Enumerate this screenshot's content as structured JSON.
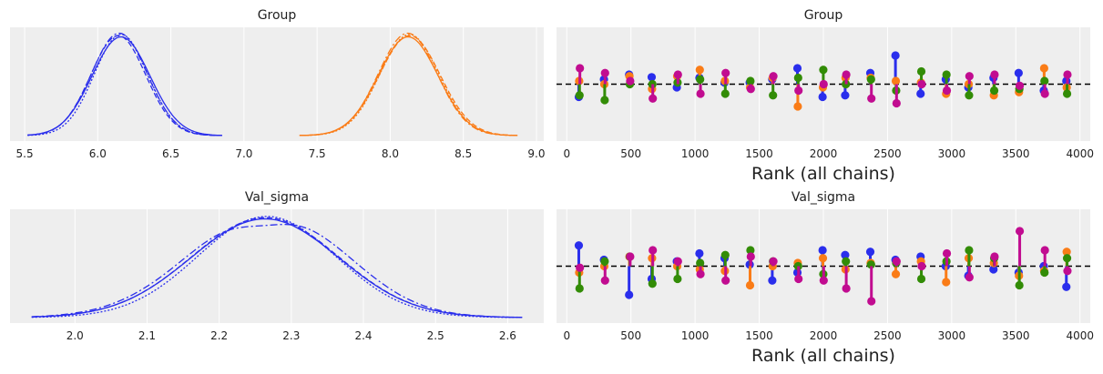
{
  "colors": {
    "panel_bg": "#eeeeee",
    "grid": "#ffffff",
    "ref_line": "#000000",
    "chain_1": "#2a2eec",
    "chain_2": "#fa7c17",
    "chain_3": "#328c06",
    "chain_4": "#c10c90"
  },
  "chart_data": [
    {
      "type": "line",
      "panel": "density",
      "title": "Group",
      "xlim": [
        5.4,
        9.05
      ],
      "xticks": [
        "5.5",
        "6.0",
        "6.5",
        "7.0",
        "7.5",
        "8.0",
        "8.5",
        "9.0"
      ],
      "grid": true,
      "series": [
        {
          "group": 1,
          "color": "#2a2eec",
          "chains": 4,
          "mean": 6.15,
          "sd": 0.19,
          "range": [
            5.52,
            6.85
          ]
        },
        {
          "group": 2,
          "color": "#fa7c17",
          "chains": 4,
          "mean": 8.13,
          "sd": 0.2,
          "range": [
            7.38,
            8.87
          ]
        }
      ]
    },
    {
      "type": "scatter",
      "panel": "rank_vlines",
      "title": "Group",
      "xlabel": "Rank (all chains)",
      "xlim": [
        -80,
        4080
      ],
      "xticks": [
        "0",
        "500",
        "1000",
        "1500",
        "2000",
        "2500",
        "3000",
        "3500",
        "4000"
      ],
      "reference_line": "dashed",
      "x": [
        98,
        294,
        490,
        666,
        862,
        1038,
        1234,
        1430,
        1606,
        1802,
        1998,
        2174,
        2370,
        2566,
        2762,
        2958,
        3134,
        3330,
        3526,
        3722,
        3898
      ],
      "series": [
        {
          "chain": 1,
          "color": "#2a2eec",
          "values": [
            -0.4,
            0.15,
            0.3,
            0.22,
            -0.1,
            0.2,
            0.05,
            0.05,
            0.15,
            0.5,
            -0.4,
            -0.35,
            0.35,
            0.9,
            -0.3,
            0.15,
            -0.1,
            0.2,
            0.35,
            -0.2,
            0.1
          ]
        },
        {
          "chain": 2,
          "color": "#fa7c17",
          "values": [
            0.1,
            0.0,
            0.25,
            -0.15,
            0.25,
            0.45,
            0.1,
            -0.1,
            0.2,
            -0.7,
            -0.1,
            0.2,
            0.2,
            0.1,
            0.05,
            -0.3,
            0.0,
            -0.35,
            -0.25,
            0.5,
            -0.1
          ]
        },
        {
          "chain": 3,
          "color": "#328c06",
          "values": [
            -0.35,
            -0.5,
            0.0,
            0.0,
            0.05,
            0.15,
            -0.3,
            0.1,
            -0.35,
            0.2,
            0.45,
            0.0,
            0.15,
            -0.2,
            0.4,
            0.3,
            -0.35,
            -0.2,
            -0.15,
            0.1,
            -0.3
          ]
        },
        {
          "chain": 4,
          "color": "#c10c90",
          "values": [
            0.5,
            0.35,
            0.1,
            -0.45,
            0.3,
            -0.3,
            0.35,
            -0.15,
            0.25,
            -0.2,
            0.0,
            0.3,
            -0.45,
            -0.6,
            0.0,
            -0.2,
            0.25,
            0.3,
            -0.05,
            -0.3,
            0.3
          ]
        }
      ]
    },
    {
      "type": "line",
      "panel": "density",
      "title": "Val_sigma",
      "xlim": [
        1.91,
        2.65
      ],
      "xticks": [
        "2.0",
        "2.1",
        "2.2",
        "2.3",
        "2.4",
        "2.5",
        "2.6"
      ],
      "grid": true,
      "series": [
        {
          "group": 1,
          "color": "#2a2eec",
          "chains": 4,
          "mean": 2.265,
          "sd": 0.1,
          "range": [
            1.94,
            2.62
          ]
        }
      ]
    },
    {
      "type": "scatter",
      "panel": "rank_vlines",
      "title": "Val_sigma",
      "xlabel": "Rank (all chains)",
      "xlim": [
        -80,
        4080
      ],
      "xticks": [
        "0",
        "500",
        "1000",
        "1500",
        "2000",
        "2500",
        "3000",
        "3500",
        "4000"
      ],
      "reference_line": "dashed",
      "x": [
        98,
        294,
        490,
        666,
        862,
        1038,
        1234,
        1430,
        1606,
        1802,
        1998,
        2174,
        2370,
        2566,
        2762,
        2958,
        3134,
        3330,
        3526,
        3722,
        3898
      ],
      "series": [
        {
          "chain": 1,
          "color": "#2a2eec",
          "values": [
            0.65,
            0.2,
            -0.9,
            -0.4,
            0.15,
            0.4,
            0.25,
            0.05,
            -0.45,
            -0.2,
            0.5,
            0.35,
            0.45,
            0.2,
            0.3,
            0.0,
            -0.3,
            -0.1,
            -0.2,
            0.0,
            -0.65
          ]
        },
        {
          "chain": 2,
          "color": "#fa7c17",
          "values": [
            -0.2,
            0.0,
            0.3,
            0.25,
            0.0,
            -0.1,
            -0.15,
            -0.6,
            0.0,
            0.1,
            0.25,
            -0.1,
            0.1,
            -0.25,
            0.15,
            -0.5,
            0.25,
            0.1,
            -0.3,
            -0.15,
            0.45
          ]
        },
        {
          "chain": 3,
          "color": "#328c06",
          "values": [
            -0.7,
            0.15,
            0.3,
            -0.55,
            -0.4,
            0.1,
            0.35,
            0.5,
            0.15,
            0.0,
            -0.25,
            0.15,
            0.05,
            0.1,
            -0.4,
            0.15,
            0.5,
            0.25,
            -0.6,
            -0.2,
            0.25
          ]
        },
        {
          "chain": 4,
          "color": "#c10c90",
          "values": [
            -0.05,
            -0.45,
            0.3,
            0.5,
            0.15,
            -0.25,
            -0.45,
            0.3,
            0.15,
            -0.4,
            -0.45,
            -0.7,
            -1.1,
            0.15,
            0.0,
            0.4,
            -0.35,
            0.3,
            1.1,
            0.5,
            -0.15
          ]
        }
      ]
    }
  ]
}
